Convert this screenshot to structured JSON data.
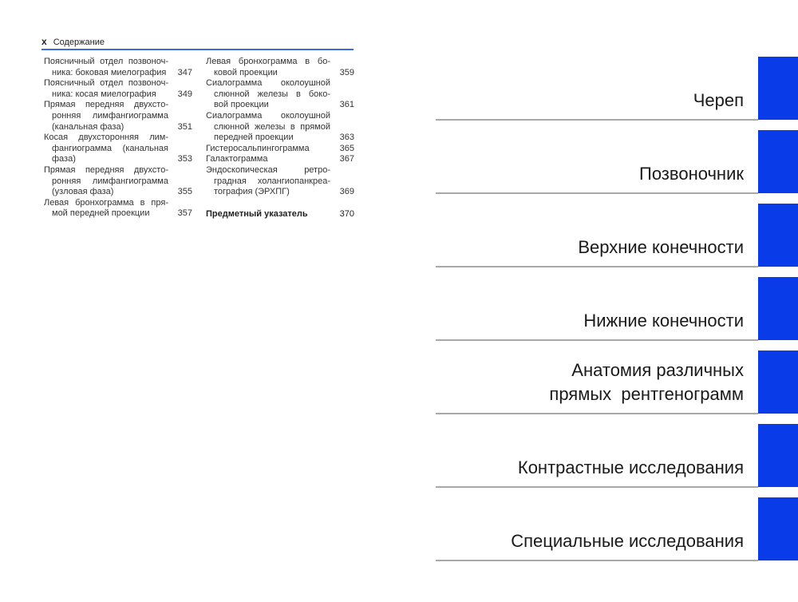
{
  "header": {
    "page_roman": "x",
    "title": "Содержание"
  },
  "toc_left": [
    {
      "lines": [
        "Поясничный отдел позвоноч-",
        "ника: боковая миелография"
      ],
      "page": "347"
    },
    {
      "lines": [
        "Поясничный отдел позвоноч-",
        "ника: косая миелография"
      ],
      "page": "349"
    },
    {
      "lines": [
        "Прямая передняя двухсто-",
        "ронняя лимфангиограмма",
        "(канальная фаза)"
      ],
      "page": "351"
    },
    {
      "lines": [
        "Косая двухсторонняя лим-",
        "фангиограмма (канальная",
        "фаза)"
      ],
      "page": "353"
    },
    {
      "lines": [
        "Прямая передняя двухсто-",
        "ронняя лимфангиограмма",
        "(узловая фаза)"
      ],
      "page": "355"
    },
    {
      "lines": [
        "Левая бронхограмма в пря-",
        "мой передней проекции"
      ],
      "page": "357"
    }
  ],
  "toc_right": [
    {
      "lines": [
        "Левая бронхограмма в бо-",
        "ковой проекции"
      ],
      "page": "359"
    },
    {
      "lines": [
        "Сиалограмма околоушной",
        "слюнной железы в боко-",
        "вой проекции"
      ],
      "page": "361"
    },
    {
      "lines": [
        "Сиалограмма околоушной",
        "слюнной железы в прямой",
        "передней проекции"
      ],
      "page": "363"
    },
    {
      "lines": [
        "Гистеросальпингограмма"
      ],
      "page": "365"
    },
    {
      "lines": [
        "Галактограмма"
      ],
      "page": "367"
    },
    {
      "lines": [
        "Эндоскопическая ретро-",
        "градная холангиопанкреа-",
        "тография (ЭРХПГ)"
      ],
      "page": "369"
    }
  ],
  "index_entry": {
    "label": "Предметный указатель",
    "page": "370"
  },
  "sections": [
    {
      "lines": [
        "Череп"
      ]
    },
    {
      "lines": [
        "Позвоночник"
      ]
    },
    {
      "lines": [
        "Верхние конечности"
      ]
    },
    {
      "lines": [
        "Нижние конечности"
      ]
    },
    {
      "lines": [
        "Анатомия различных",
        "прямых  рентгенограмм"
      ]
    },
    {
      "lines": [
        "Контрастные исследования"
      ]
    },
    {
      "lines": [
        "Специальные исследования"
      ]
    }
  ],
  "colors": {
    "tab_blue": "#0a3be8",
    "header_rule": "#3a6ee0",
    "section_rule": "#a8aaa8"
  }
}
